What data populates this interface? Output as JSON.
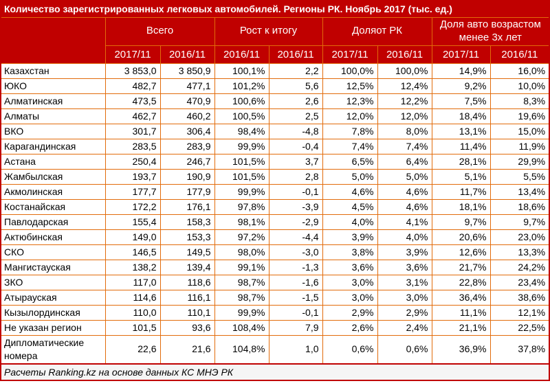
{
  "title": "Количество зарегистрированных легковых автомобилей. Регионы РК. Ноябрь 2017 (тыс. ед.)",
  "chart_data": {
    "type": "table",
    "title": "Количество зарегистрированных легковых автомобилей. Регионы РК. Ноябрь 2017 (тыс. ед.)",
    "column_groups": [
      {
        "label": "Всего",
        "subcols": [
          "2017/11",
          "2016/11"
        ]
      },
      {
        "label": "Рост к итогу",
        "subcols": [
          "2016/11",
          "2016/11"
        ]
      },
      {
        "label": "Доляот РК",
        "subcols": [
          "2017/11",
          "2016/11"
        ]
      },
      {
        "label": "Доля авто возрастом менее 3х лет",
        "subcols": [
          "2017/11",
          "2016/11"
        ]
      }
    ],
    "rows": [
      {
        "region": "Казахстан",
        "values": [
          "3 853,0",
          "3 850,9",
          "100,1%",
          "2,2",
          "100,0%",
          "100,0%",
          "14,9%",
          "16,0%"
        ]
      },
      {
        "region": "ЮКО",
        "values": [
          "482,7",
          "477,1",
          "101,2%",
          "5,6",
          "12,5%",
          "12,4%",
          "9,2%",
          "10,0%"
        ]
      },
      {
        "region": "Алматинская",
        "values": [
          "473,5",
          "470,9",
          "100,6%",
          "2,6",
          "12,3%",
          "12,2%",
          "7,5%",
          "8,3%"
        ]
      },
      {
        "region": "Алматы",
        "values": [
          "462,7",
          "460,2",
          "100,5%",
          "2,5",
          "12,0%",
          "12,0%",
          "18,4%",
          "19,6%"
        ]
      },
      {
        "region": "ВКО",
        "values": [
          "301,7",
          "306,4",
          "98,4%",
          "-4,8",
          "7,8%",
          "8,0%",
          "13,1%",
          "15,0%"
        ]
      },
      {
        "region": "Карагандинская",
        "values": [
          "283,5",
          "283,9",
          "99,9%",
          "-0,4",
          "7,4%",
          "7,4%",
          "11,4%",
          "11,9%"
        ]
      },
      {
        "region": "Астана",
        "values": [
          "250,4",
          "246,7",
          "101,5%",
          "3,7",
          "6,5%",
          "6,4%",
          "28,1%",
          "29,9%"
        ]
      },
      {
        "region": "Жамбылская",
        "values": [
          "193,7",
          "190,9",
          "101,5%",
          "2,8",
          "5,0%",
          "5,0%",
          "5,1%",
          "5,5%"
        ]
      },
      {
        "region": "Акмолинская",
        "values": [
          "177,7",
          "177,9",
          "99,9%",
          "-0,1",
          "4,6%",
          "4,6%",
          "11,7%",
          "13,4%"
        ]
      },
      {
        "region": "Костанайская",
        "values": [
          "172,2",
          "176,1",
          "97,8%",
          "-3,9",
          "4,5%",
          "4,6%",
          "18,1%",
          "18,6%"
        ]
      },
      {
        "region": "Павлодарская",
        "values": [
          "155,4",
          "158,3",
          "98,1%",
          "-2,9",
          "4,0%",
          "4,1%",
          "9,7%",
          "9,7%"
        ]
      },
      {
        "region": "Актюбинская",
        "values": [
          "149,0",
          "153,3",
          "97,2%",
          "-4,4",
          "3,9%",
          "4,0%",
          "20,6%",
          "23,0%"
        ]
      },
      {
        "region": "СКО",
        "values": [
          "146,5",
          "149,5",
          "98,0%",
          "-3,0",
          "3,8%",
          "3,9%",
          "12,6%",
          "13,3%"
        ]
      },
      {
        "region": "Мангистауская",
        "values": [
          "138,2",
          "139,4",
          "99,1%",
          "-1,3",
          "3,6%",
          "3,6%",
          "21,7%",
          "24,2%"
        ]
      },
      {
        "region": "ЗКО",
        "values": [
          "117,0",
          "118,6",
          "98,7%",
          "-1,6",
          "3,0%",
          "3,1%",
          "22,8%",
          "23,4%"
        ]
      },
      {
        "region": "Атырауская",
        "values": [
          "114,6",
          "116,1",
          "98,7%",
          "-1,5",
          "3,0%",
          "3,0%",
          "36,4%",
          "38,6%"
        ]
      },
      {
        "region": "Кызылординская",
        "values": [
          "110,0",
          "110,1",
          "99,9%",
          "-0,1",
          "2,9%",
          "2,9%",
          "11,1%",
          "12,1%"
        ]
      },
      {
        "region": "Не указан регион",
        "values": [
          "101,5",
          "93,6",
          "108,4%",
          "7,9",
          "2,6%",
          "2,4%",
          "21,1%",
          "22,5%"
        ]
      },
      {
        "region": "Дипломатические номера",
        "values": [
          "22,6",
          "21,6",
          "104,8%",
          "1,0",
          "0,6%",
          "0,6%",
          "36,9%",
          "37,8%"
        ]
      }
    ],
    "footer": "Расчеты Ranking.kz на основе данных КС МНЭ РК"
  },
  "colors": {
    "header_bg": "#C00000",
    "header_text": "#FFFFFF",
    "grid_border": "#E26B0A",
    "outer_border": "#C00000",
    "body_bg": "#FFFFFF",
    "body_text": "#000000",
    "footer_bg": "#F5F5F5"
  }
}
